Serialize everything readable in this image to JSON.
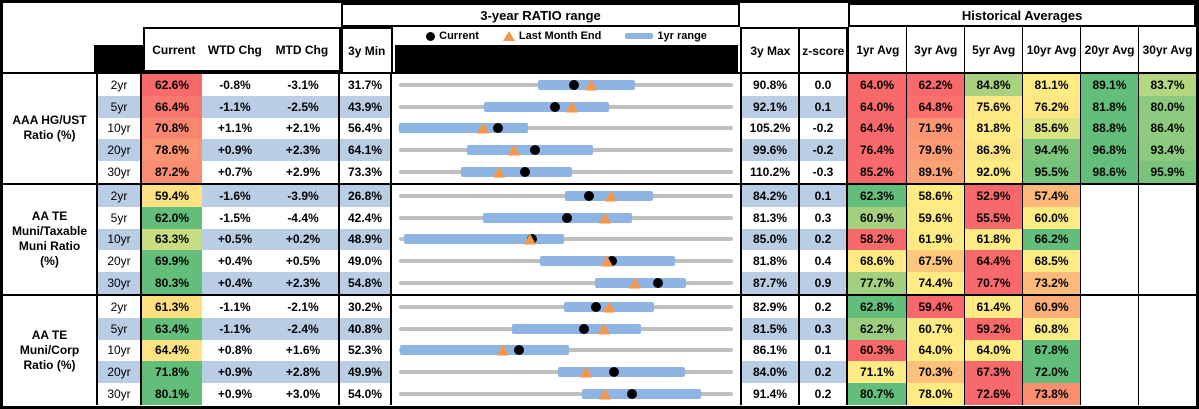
{
  "header": {
    "chart_range_title": "3-year RATIO range",
    "historical_title": "Historical Averages",
    "columns": {
      "current": "Current",
      "wtd": "WTD Chg",
      "mtd": "MTD Chg",
      "min": "3y Min",
      "max": "3y Max",
      "z": "z-score"
    },
    "avg_columns": [
      "1yr Avg",
      "3yr Avg",
      "5yr Avg",
      "10yr Avg",
      "20yr Avg",
      "30yr Avg"
    ],
    "legend": {
      "current": "Current",
      "last_month": "Last Month End",
      "range": "1yr range"
    }
  },
  "colors": {
    "band_blue": "#B9CDE5",
    "range_bar_blue": "#8EB4E3",
    "range_line_gray": "#BFBFBF",
    "triangle_orange": "#F79646",
    "dot_black": "#000000",
    "heat_red": "#F8696B",
    "heat_yellow": "#FFEB84",
    "heat_green": "#63BE7B"
  },
  "chart_data": {
    "type": "table",
    "description": "Muni ratio dashboard: current/WTD/MTD values, 3-year ratio range dot plot (current dot, last-month-end triangle, 1yr range bar between 3y min and 3y max), z-score and historical average heatmap.",
    "groups": [
      {
        "label": "AAA HG/UST Ratio (%)",
        "label_lines": [
          "AAA HG/UST",
          "Ratio (%)"
        ],
        "rows": [
          {
            "tenor": "2yr",
            "current": {
              "text": "62.6%",
              "value": 62.6,
              "bg": "#F8696B"
            },
            "wtd": "-0.8%",
            "mtd": "-3.1%",
            "min": {
              "text": "31.7%",
              "value": 31.7
            },
            "max": {
              "text": "90.8%",
              "value": 90.8
            },
            "z": "0.0",
            "last_month": 65.7,
            "yr1_range": [
              56.3,
              73.4
            ],
            "avgs": [
              {
                "text": "64.0%",
                "bg": "#F8696B"
              },
              {
                "text": "62.2%",
                "bg": "#F8696B"
              },
              {
                "text": "84.8%",
                "bg": "#A8D27F"
              },
              {
                "text": "81.1%",
                "bg": "#FFEB84"
              },
              {
                "text": "89.1%",
                "bg": "#63BE7B"
              },
              {
                "text": "83.7%",
                "bg": "#B4D67F"
              }
            ]
          },
          {
            "tenor": "5yr",
            "current": {
              "text": "66.4%",
              "value": 66.4,
              "bg": "#F8776E"
            },
            "wtd": "-1.1%",
            "mtd": "-2.5%",
            "min": {
              "text": "43.9%",
              "value": 43.9
            },
            "max": {
              "text": "92.1%",
              "value": 92.1
            },
            "z": "0.1",
            "last_month": 68.9,
            "yr1_range": [
              56.1,
              74.2
            ],
            "avgs": [
              {
                "text": "64.0%",
                "bg": "#F8696B"
              },
              {
                "text": "64.8%",
                "bg": "#F9706C"
              },
              {
                "text": "75.6%",
                "bg": "#FFE884"
              },
              {
                "text": "76.2%",
                "bg": "#FFE884"
              },
              {
                "text": "81.8%",
                "bg": "#63BE7B"
              },
              {
                "text": "80.0%",
                "bg": "#8CCA7E"
              }
            ]
          },
          {
            "tenor": "10yr",
            "current": {
              "text": "70.8%",
              "value": 70.8,
              "bg": "#F98670"
            },
            "wtd": "+1.1%",
            "mtd": "+2.1%",
            "min": {
              "text": "56.4%",
              "value": 56.4
            },
            "max": {
              "text": "105.2%",
              "value": 105.2
            },
            "z": "-0.2",
            "last_month": 68.7,
            "yr1_range": [
              56.4,
              75.3
            ],
            "avgs": [
              {
                "text": "64.4%",
                "bg": "#F8696B"
              },
              {
                "text": "71.9%",
                "bg": "#FB9573"
              },
              {
                "text": "81.8%",
                "bg": "#FFEB84"
              },
              {
                "text": "85.6%",
                "bg": "#DCE482"
              },
              {
                "text": "88.8%",
                "bg": "#63BE7B"
              },
              {
                "text": "86.4%",
                "bg": "#8FCB7E"
              }
            ]
          },
          {
            "tenor": "20yr",
            "current": {
              "text": "78.6%",
              "value": 78.6,
              "bg": "#FA9473"
            },
            "wtd": "+0.9%",
            "mtd": "+2.3%",
            "min": {
              "text": "64.1%",
              "value": 64.1
            },
            "max": {
              "text": "99.6%",
              "value": 99.6
            },
            "z": "-0.2",
            "last_month": 76.3,
            "yr1_range": [
              71.3,
              84.7
            ],
            "avgs": [
              {
                "text": "76.4%",
                "bg": "#F8696B"
              },
              {
                "text": "79.6%",
                "bg": "#FB9B75"
              },
              {
                "text": "86.3%",
                "bg": "#FFE483"
              },
              {
                "text": "94.4%",
                "bg": "#7FC67D"
              },
              {
                "text": "96.8%",
                "bg": "#63BE7B"
              },
              {
                "text": "93.4%",
                "bg": "#8CCA7E"
              }
            ]
          },
          {
            "tenor": "30yr",
            "current": {
              "text": "87.2%",
              "value": 87.2,
              "bg": "#F98D71"
            },
            "wtd": "+0.7%",
            "mtd": "+2.9%",
            "min": {
              "text": "73.3%",
              "value": 73.3
            },
            "max": {
              "text": "110.2%",
              "value": 110.2
            },
            "z": "-0.3",
            "last_month": 84.3,
            "yr1_range": [
              80.1,
              92.4
            ],
            "avgs": [
              {
                "text": "85.2%",
                "bg": "#F8696B"
              },
              {
                "text": "89.1%",
                "bg": "#FBA376"
              },
              {
                "text": "92.0%",
                "bg": "#FFEB84"
              },
              {
                "text": "95.5%",
                "bg": "#76C37C"
              },
              {
                "text": "98.6%",
                "bg": "#63BE7B"
              },
              {
                "text": "95.9%",
                "bg": "#79C47C"
              }
            ]
          }
        ]
      },
      {
        "label": "AA TE Muni/Taxable Muni Ratio (%)",
        "label_lines": [
          "AA TE",
          "Muni/Taxable",
          "Muni Ratio",
          "(%)"
        ],
        "rows": [
          {
            "tenor": "2yr",
            "current": {
              "text": "59.4%",
              "value": 59.4,
              "bg": "#FFE382"
            },
            "wtd": "-1.6%",
            "mtd": "-3.9%",
            "min": {
              "text": "26.8%",
              "value": 26.8
            },
            "max": {
              "text": "84.2%",
              "value": 84.2
            },
            "z": "0.1",
            "last_month": 63.3,
            "yr1_range": [
              55.3,
              70.4
            ],
            "avgs": [
              {
                "text": "62.3%",
                "bg": "#63BE7B"
              },
              {
                "text": "58.6%",
                "bg": "#FFEB84"
              },
              {
                "text": "52.9%",
                "bg": "#F8696B"
              },
              {
                "text": "57.4%",
                "bg": "#FCB97A"
              }
            ]
          },
          {
            "tenor": "5yr",
            "current": {
              "text": "62.0%",
              "value": 62.0,
              "bg": "#63BE7B"
            },
            "wtd": "-1.5%",
            "mtd": "-4.4%",
            "min": {
              "text": "42.4%",
              "value": 42.4
            },
            "max": {
              "text": "81.3%",
              "value": 81.3
            },
            "z": "0.3",
            "last_month": 66.4,
            "yr1_range": [
              52.2,
              69.5
            ],
            "avgs": [
              {
                "text": "60.9%",
                "bg": "#A5D17F"
              },
              {
                "text": "59.6%",
                "bg": "#FFEB84"
              },
              {
                "text": "55.5%",
                "bg": "#F8696B"
              },
              {
                "text": "60.0%",
                "bg": "#FFEB84"
              }
            ]
          },
          {
            "tenor": "10yr",
            "current": {
              "text": "63.3%",
              "value": 63.3,
              "bg": "#C8DC81"
            },
            "wtd": "+0.5%",
            "mtd": "+0.2%",
            "min": {
              "text": "48.9%",
              "value": 48.9
            },
            "max": {
              "text": "85.0%",
              "value": 85.0
            },
            "z": "0.2",
            "last_month": 63.1,
            "yr1_range": [
              49.4,
              66.7
            ],
            "avgs": [
              {
                "text": "58.2%",
                "bg": "#F8696B"
              },
              {
                "text": "61.9%",
                "bg": "#FFEB84"
              },
              {
                "text": "61.8%",
                "bg": "#FFEB84"
              },
              {
                "text": "66.2%",
                "bg": "#63BE7B"
              }
            ]
          },
          {
            "tenor": "20yr",
            "current": {
              "text": "69.9%",
              "value": 69.9,
              "bg": "#63BE7B"
            },
            "wtd": "+0.4%",
            "mtd": "+0.5%",
            "min": {
              "text": "49.0%",
              "value": 49.0
            },
            "max": {
              "text": "81.8%",
              "value": 81.8
            },
            "z": "0.4",
            "last_month": 69.4,
            "yr1_range": [
              62.8,
              76.1
            ],
            "avgs": [
              {
                "text": "68.6%",
                "bg": "#FFEB84"
              },
              {
                "text": "67.5%",
                "bg": "#FDC77C"
              },
              {
                "text": "64.4%",
                "bg": "#F8696B"
              },
              {
                "text": "68.5%",
                "bg": "#FFEB84"
              }
            ]
          },
          {
            "tenor": "30yr",
            "current": {
              "text": "80.3%",
              "value": 80.3,
              "bg": "#63BE7B"
            },
            "wtd": "+0.4%",
            "mtd": "+2.3%",
            "min": {
              "text": "54.8%",
              "value": 54.8
            },
            "max": {
              "text": "87.7%",
              "value": 87.7
            },
            "z": "0.9",
            "last_month": 78.0,
            "yr1_range": [
              74.1,
              83.1
            ],
            "avgs": [
              {
                "text": "77.7%",
                "bg": "#A2D07F"
              },
              {
                "text": "74.4%",
                "bg": "#FFEB84"
              },
              {
                "text": "70.7%",
                "bg": "#F8696B"
              },
              {
                "text": "73.2%",
                "bg": "#FCBB7A"
              }
            ]
          }
        ]
      },
      {
        "label": "AA TE Muni/Corp Ratio (%)",
        "label_lines": [
          "AA TE",
          "Muni/Corp",
          "Ratio (%)"
        ],
        "rows": [
          {
            "tenor": "2yr",
            "current": {
              "text": "61.3%",
              "value": 61.3,
              "bg": "#FFE080"
            },
            "wtd": "-1.1%",
            "mtd": "-2.1%",
            "min": {
              "text": "30.2%",
              "value": 30.2
            },
            "max": {
              "text": "82.9%",
              "value": 82.9
            },
            "z": "0.2",
            "last_month": 63.4,
            "yr1_range": [
              56.3,
              70.5
            ],
            "avgs": [
              {
                "text": "62.8%",
                "bg": "#63BE7B"
              },
              {
                "text": "59.4%",
                "bg": "#F8696B"
              },
              {
                "text": "61.4%",
                "bg": "#FFEB84"
              },
              {
                "text": "60.9%",
                "bg": "#FBAE78"
              }
            ]
          },
          {
            "tenor": "5yr",
            "current": {
              "text": "63.4%",
              "value": 63.4,
              "bg": "#63BE7B"
            },
            "wtd": "-1.1%",
            "mtd": "-2.4%",
            "min": {
              "text": "40.8%",
              "value": 40.8
            },
            "max": {
              "text": "81.5%",
              "value": 81.5
            },
            "z": "0.3",
            "last_month": 65.8,
            "yr1_range": [
              54.6,
              70.3
            ],
            "avgs": [
              {
                "text": "62.2%",
                "bg": "#9CCE7F"
              },
              {
                "text": "60.7%",
                "bg": "#FFEB84"
              },
              {
                "text": "59.2%",
                "bg": "#F8696B"
              },
              {
                "text": "60.8%",
                "bg": "#FFEB84"
              }
            ]
          },
          {
            "tenor": "10yr",
            "current": {
              "text": "64.4%",
              "value": 64.4,
              "bg": "#FFE382"
            },
            "wtd": "+0.8%",
            "mtd": "+1.6%",
            "min": {
              "text": "52.3%",
              "value": 52.3
            },
            "max": {
              "text": "86.1%",
              "value": 86.1
            },
            "z": "0.1",
            "last_month": 62.8,
            "yr1_range": [
              52.4,
              69.5
            ],
            "avgs": [
              {
                "text": "60.3%",
                "bg": "#F8696B"
              },
              {
                "text": "64.0%",
                "bg": "#FFEB84"
              },
              {
                "text": "64.0%",
                "bg": "#FFEB84"
              },
              {
                "text": "67.8%",
                "bg": "#63BE7B"
              }
            ]
          },
          {
            "tenor": "20yr",
            "current": {
              "text": "71.8%",
              "value": 71.8,
              "bg": "#63BE7B"
            },
            "wtd": "+0.9%",
            "mtd": "+2.8%",
            "min": {
              "text": "49.9%",
              "value": 49.9
            },
            "max": {
              "text": "84.0%",
              "value": 84.0
            },
            "z": "0.2",
            "last_month": 69.0,
            "yr1_range": [
              66.1,
              79.1
            ],
            "avgs": [
              {
                "text": "71.1%",
                "bg": "#FFEB84"
              },
              {
                "text": "70.3%",
                "bg": "#FDC17B"
              },
              {
                "text": "67.3%",
                "bg": "#F8696B"
              },
              {
                "text": "72.0%",
                "bg": "#63BE7B"
              }
            ]
          },
          {
            "tenor": "30yr",
            "current": {
              "text": "80.1%",
              "value": 80.1,
              "bg": "#63BE7B"
            },
            "wtd": "+0.9%",
            "mtd": "+3.0%",
            "min": {
              "text": "54.0%",
              "value": 54.0
            },
            "max": {
              "text": "91.4%",
              "value": 91.4
            },
            "z": "0.2",
            "last_month": 77.1,
            "yr1_range": [
              74.5,
              87.8
            ],
            "avgs": [
              {
                "text": "80.7%",
                "bg": "#63BE7B"
              },
              {
                "text": "78.0%",
                "bg": "#FFEB84"
              },
              {
                "text": "72.6%",
                "bg": "#F8696B"
              },
              {
                "text": "73.8%",
                "bg": "#F98E71"
              }
            ]
          }
        ]
      }
    ]
  }
}
